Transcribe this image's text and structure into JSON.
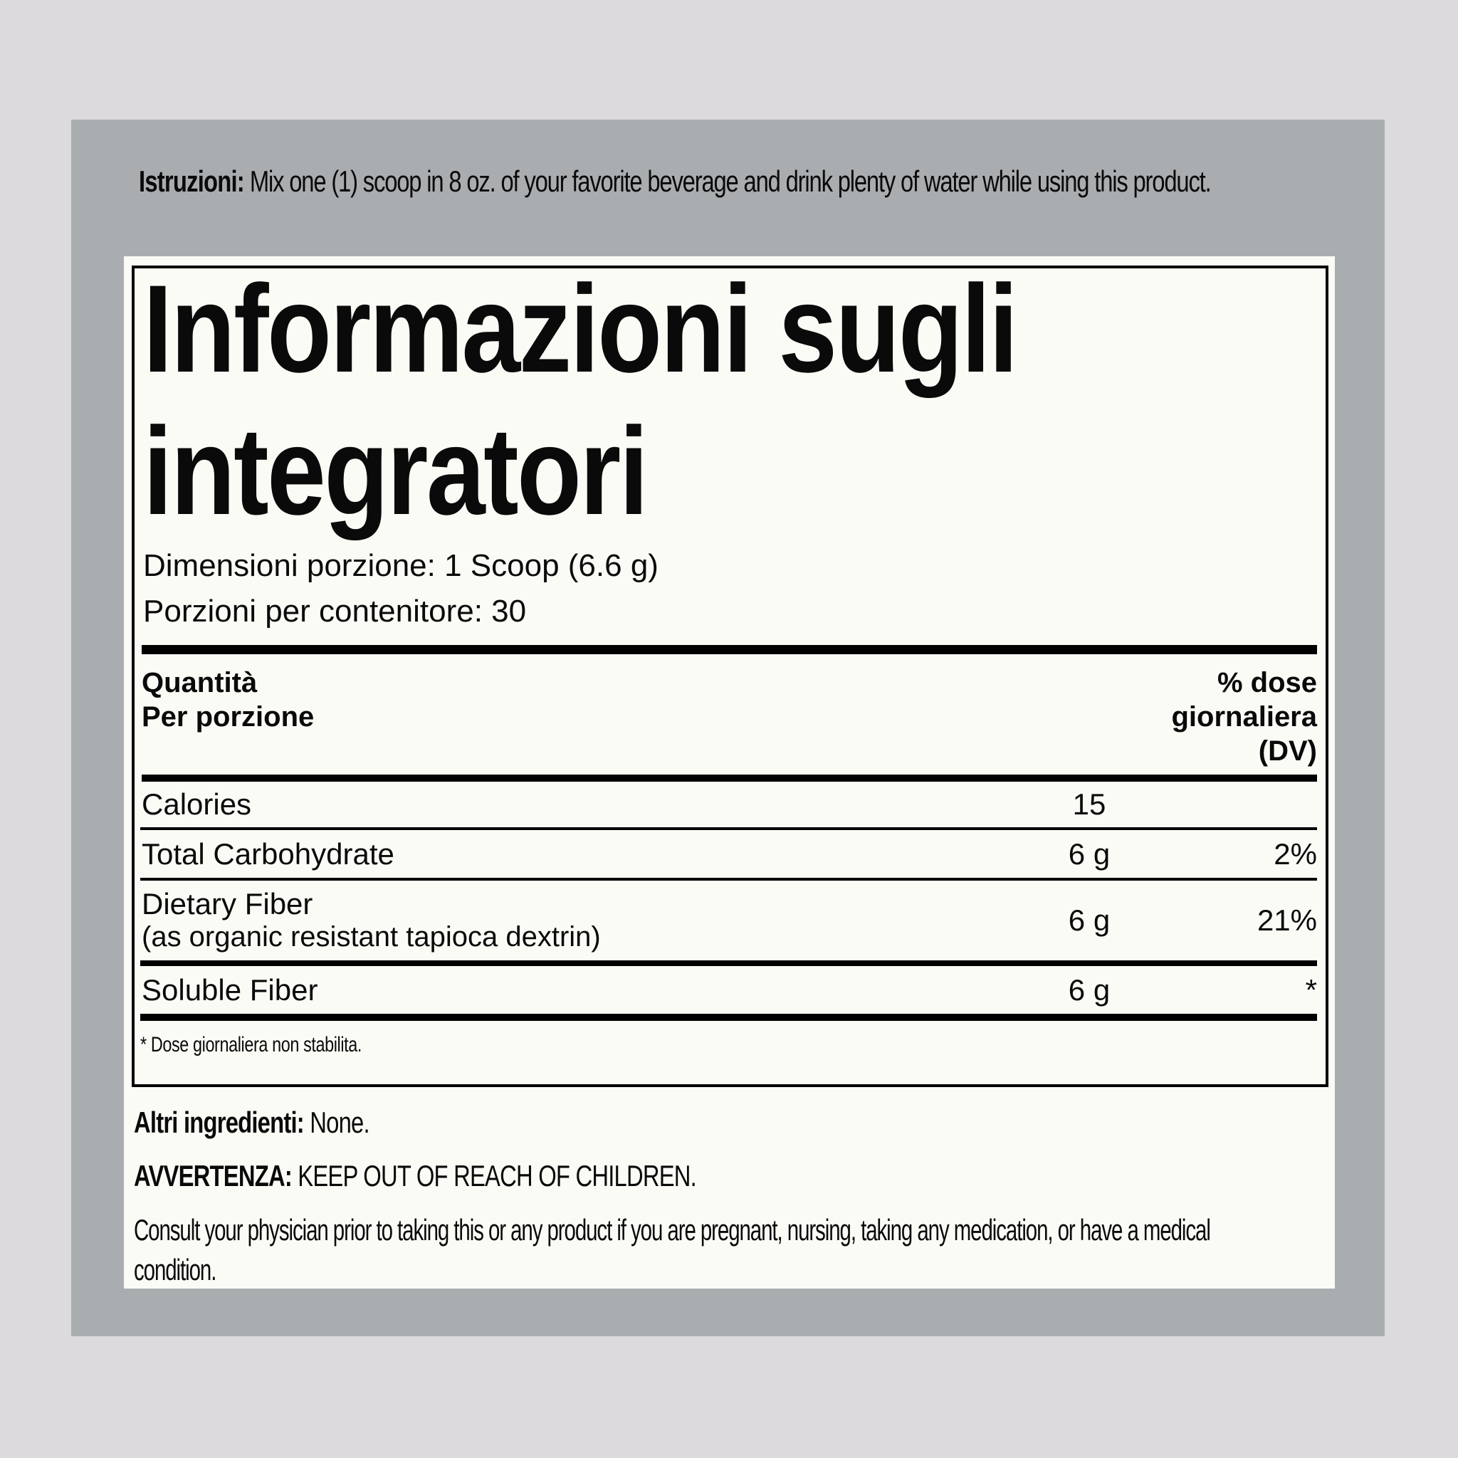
{
  "instructions": {
    "label": "Istruzioni:",
    "text": "Mix one (1) scoop in 8 oz. of your favorite beverage and drink plenty of water while using this product."
  },
  "facts": {
    "title": "Informazioni sugli integratori",
    "serving_size": "Dimensioni porzione: 1 Scoop (6.6 g)",
    "servings_per_container": "Porzioni per contenitore: 30",
    "columns": {
      "amount_line1": "Quantità",
      "amount_line2": "Per porzione",
      "dv_line1": "% dose",
      "dv_line2": "giornaliera",
      "dv_line3": "(DV)"
    },
    "rows": [
      {
        "name": "Calories",
        "amount": "15",
        "dv": ""
      },
      {
        "name": "Total Carbohydrate",
        "amount": "6 g",
        "dv": "2%"
      },
      {
        "name": "Dietary Fiber",
        "sub": "(as organic resistant tapioca dextrin)",
        "amount": "6 g",
        "dv": "21%"
      },
      {
        "name": "Soluble Fiber",
        "amount": "6 g",
        "dv": "*"
      }
    ],
    "footnote": "* Dose giornaliera non stabilita."
  },
  "other_ingredients": {
    "label": "Altri ingredienti:",
    "text": "None."
  },
  "warning": {
    "label": "AVVERTENZA:",
    "text": "KEEP OUT OF REACH OF CHILDREN."
  },
  "disclaimer": "Consult your physician prior to taking this or any product if you are pregnant, nursing, taking any medication, or have a medical condition.",
  "colors": {
    "page_bg": "#dcdadd",
    "panel_bg": "#a9adb0",
    "label_bg": "#fbfbf6",
    "text": "#0a0a0a"
  }
}
